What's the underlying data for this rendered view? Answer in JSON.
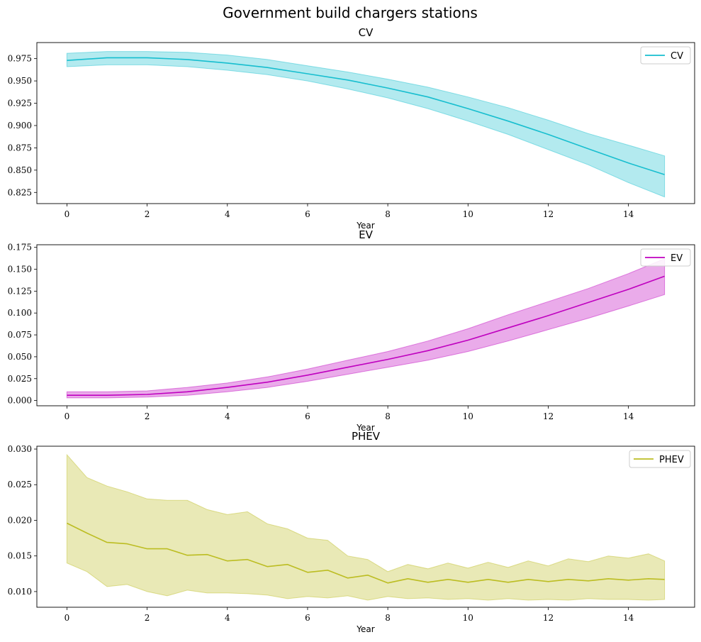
{
  "suptitle": "Government build chargers stations",
  "chart_data": [
    {
      "type": "line",
      "title": "CV",
      "xlabel": "Year",
      "ylabel": "",
      "color": "#17becf",
      "xlim": [
        -0.75,
        15.65
      ],
      "ylim": [
        0.8125,
        0.993
      ],
      "xticks": [
        0,
        2,
        4,
        6,
        8,
        10,
        12,
        14
      ],
      "yticks": [
        0.825,
        0.85,
        0.875,
        0.9,
        0.925,
        0.95,
        0.975
      ],
      "ytick_labels": [
        "0.825",
        "0.850",
        "0.875",
        "0.900",
        "0.925",
        "0.950",
        "0.975"
      ],
      "legend": {
        "label": "CV",
        "position": "top-right"
      },
      "series": [
        {
          "name": "CV",
          "x": [
            0,
            1,
            2,
            3,
            4,
            5,
            6,
            7,
            8,
            9,
            10,
            11,
            12,
            13,
            14,
            14.9
          ],
          "mean": [
            0.973,
            0.976,
            0.976,
            0.974,
            0.97,
            0.965,
            0.958,
            0.951,
            0.942,
            0.932,
            0.919,
            0.905,
            0.89,
            0.874,
            0.858,
            0.845
          ],
          "lower": [
            0.966,
            0.968,
            0.968,
            0.966,
            0.962,
            0.957,
            0.95,
            0.941,
            0.931,
            0.919,
            0.905,
            0.89,
            0.873,
            0.856,
            0.836,
            0.82
          ],
          "upper": [
            0.981,
            0.983,
            0.983,
            0.982,
            0.979,
            0.974,
            0.967,
            0.96,
            0.952,
            0.943,
            0.932,
            0.92,
            0.906,
            0.891,
            0.878,
            0.866
          ]
        }
      ]
    },
    {
      "type": "line",
      "title": "EV",
      "xlabel": "Year",
      "ylabel": "",
      "color": "#bf00bf",
      "xlim": [
        -0.75,
        15.65
      ],
      "ylim": [
        -0.006,
        0.178
      ],
      "xticks": [
        0,
        2,
        4,
        6,
        8,
        10,
        12,
        14
      ],
      "yticks": [
        0.0,
        0.025,
        0.05,
        0.075,
        0.1,
        0.125,
        0.15,
        0.175
      ],
      "ytick_labels": [
        "0.000",
        "0.025",
        "0.050",
        "0.075",
        "0.100",
        "0.125",
        "0.150",
        "0.175"
      ],
      "legend": {
        "label": "EV",
        "position": "top-right"
      },
      "series": [
        {
          "name": "EV",
          "x": [
            0,
            1,
            2,
            3,
            4,
            5,
            6,
            7,
            8,
            9,
            10,
            11,
            12,
            13,
            14,
            14.9
          ],
          "mean": [
            0.006,
            0.006,
            0.007,
            0.01,
            0.015,
            0.021,
            0.029,
            0.038,
            0.047,
            0.057,
            0.069,
            0.083,
            0.097,
            0.112,
            0.127,
            0.142
          ],
          "lower": [
            0.003,
            0.003,
            0.004,
            0.006,
            0.01,
            0.015,
            0.022,
            0.03,
            0.038,
            0.046,
            0.056,
            0.068,
            0.081,
            0.094,
            0.108,
            0.121
          ],
          "upper": [
            0.01,
            0.01,
            0.011,
            0.015,
            0.02,
            0.027,
            0.036,
            0.046,
            0.056,
            0.068,
            0.082,
            0.098,
            0.113,
            0.128,
            0.145,
            0.162
          ]
        }
      ]
    },
    {
      "type": "line",
      "title": "PHEV",
      "xlabel": "Year",
      "ylabel": "",
      "color": "#bcbd22",
      "xlim": [
        -0.75,
        15.65
      ],
      "ylim": [
        0.0078,
        0.0304
      ],
      "xticks": [
        0,
        2,
        4,
        6,
        8,
        10,
        12,
        14
      ],
      "yticks": [
        0.01,
        0.015,
        0.02,
        0.025,
        0.03
      ],
      "ytick_labels": [
        "0.010",
        "0.015",
        "0.020",
        "0.025",
        "0.030"
      ],
      "legend": {
        "label": "PHEV",
        "position": "top-right"
      },
      "series": [
        {
          "name": "PHEV",
          "x": [
            0,
            0.5,
            1,
            1.5,
            2,
            2.5,
            3,
            3.5,
            4,
            4.5,
            5,
            5.5,
            6,
            6.5,
            7,
            7.5,
            8,
            8.5,
            9,
            9.5,
            10,
            10.5,
            11,
            11.5,
            12,
            12.5,
            13,
            13.5,
            14,
            14.5,
            14.9
          ],
          "mean": [
            0.0196,
            0.0182,
            0.0169,
            0.0167,
            0.016,
            0.016,
            0.0151,
            0.0152,
            0.0143,
            0.0145,
            0.0135,
            0.0138,
            0.0127,
            0.013,
            0.0119,
            0.0123,
            0.0112,
            0.0118,
            0.0113,
            0.0117,
            0.0113,
            0.0117,
            0.0113,
            0.0117,
            0.0114,
            0.0117,
            0.0115,
            0.0118,
            0.0116,
            0.0118,
            0.0117
          ],
          "lower": [
            0.014,
            0.0128,
            0.0107,
            0.011,
            0.01,
            0.0094,
            0.0102,
            0.0098,
            0.0098,
            0.0097,
            0.0095,
            0.009,
            0.0093,
            0.0091,
            0.0094,
            0.0088,
            0.0093,
            0.009,
            0.0091,
            0.0089,
            0.009,
            0.0088,
            0.009,
            0.0088,
            0.0089,
            0.0088,
            0.009,
            0.0089,
            0.0089,
            0.0088,
            0.0089
          ],
          "upper": [
            0.0292,
            0.026,
            0.0248,
            0.024,
            0.023,
            0.0228,
            0.0228,
            0.0215,
            0.0208,
            0.0212,
            0.0195,
            0.0188,
            0.0175,
            0.0172,
            0.015,
            0.0145,
            0.0128,
            0.0138,
            0.0132,
            0.014,
            0.0133,
            0.0141,
            0.0134,
            0.0143,
            0.0136,
            0.0146,
            0.0142,
            0.015,
            0.0147,
            0.0153,
            0.0143
          ]
        }
      ]
    }
  ]
}
